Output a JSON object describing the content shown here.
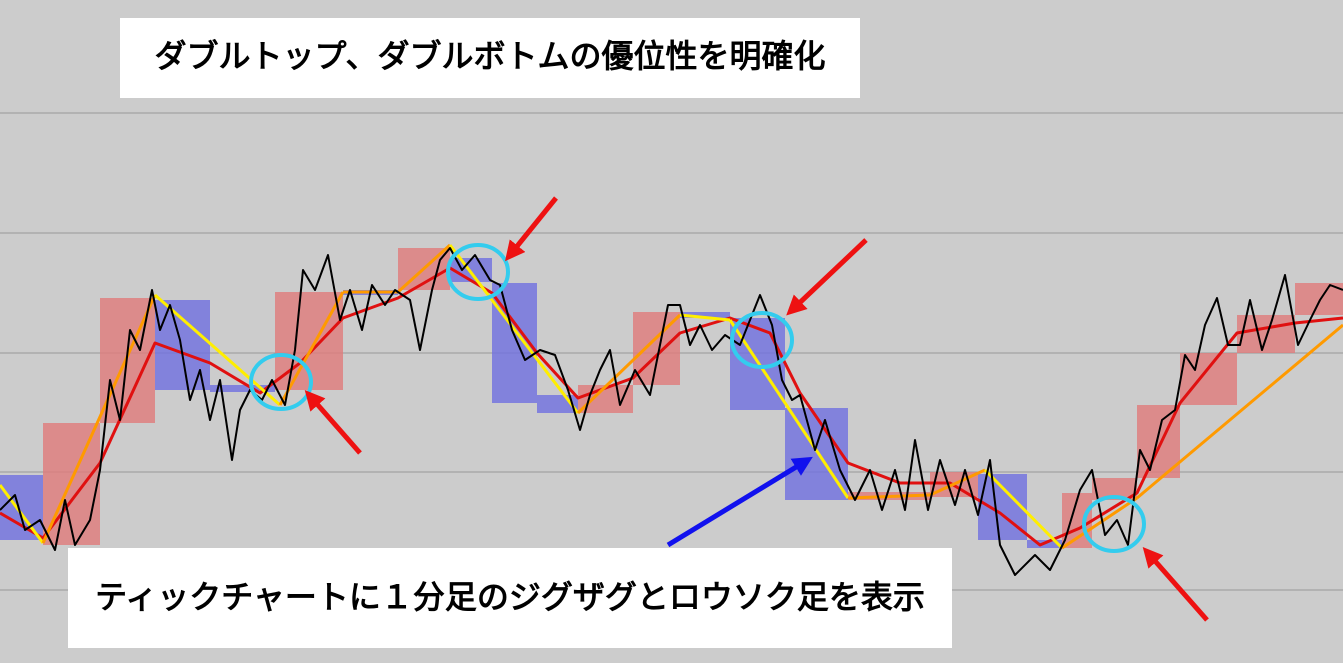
{
  "title": "ダブルトップ、ダブルボトムの優位性を明確化",
  "caption": "ティックチャートに１分足のジグザグとロウソク足を表示",
  "chart_data": {
    "type": "candlestick",
    "xlim": [
      0,
      1343
    ],
    "ylim": [
      0,
      663
    ],
    "candles": {
      "up_color": "#e07a7a",
      "down_color": "#6f6fe0",
      "x": [
        0,
        43,
        100,
        155,
        210,
        275,
        343,
        398,
        450,
        492,
        537,
        578,
        633,
        680,
        730,
        785,
        848,
        930,
        978,
        1027,
        1062,
        1092,
        1137,
        1180,
        1237,
        1295
      ],
      "open": [
        188,
        118,
        240,
        363,
        278,
        273,
        373,
        373,
        405,
        380,
        268,
        250,
        278,
        351,
        345,
        255,
        163,
        166,
        189,
        123,
        115,
        163,
        185,
        258,
        310,
        348
      ],
      "close": [
        123,
        240,
        365,
        273,
        271,
        371,
        368,
        415,
        381,
        260,
        250,
        278,
        351,
        345,
        253,
        163,
        171,
        191,
        123,
        115,
        170,
        185,
        258,
        310,
        348,
        380
      ]
    },
    "ma": {
      "color": "#e01010",
      "x": [
        0,
        43,
        100,
        155,
        210,
        260,
        300,
        343,
        398,
        450,
        492,
        537,
        578,
        633,
        680,
        730,
        770,
        800,
        848,
        900,
        950,
        1000,
        1040,
        1080,
        1137,
        1180,
        1237,
        1295,
        1343
      ],
      "values": [
        150,
        125,
        200,
        320,
        300,
        270,
        300,
        345,
        365,
        395,
        370,
        310,
        265,
        285,
        330,
        345,
        330,
        270,
        200,
        180,
        180,
        150,
        118,
        135,
        170,
        260,
        330,
        340,
        345
      ]
    },
    "zigzag": {
      "up_color": "#ff9a00",
      "down_color": "#ffee00",
      "x": [
        0,
        43,
        155,
        280,
        343,
        398,
        450,
        492,
        578,
        680,
        730,
        848,
        930,
        985,
        1062,
        1137,
        1343
      ],
      "values": [
        178,
        120,
        368,
        258,
        371,
        371,
        418,
        363,
        250,
        348,
        343,
        165,
        168,
        193,
        115,
        165,
        338
      ]
    },
    "tick": {
      "color": "#000000",
      "x": [
        0,
        15,
        25,
        40,
        55,
        65,
        75,
        90,
        100,
        110,
        120,
        130,
        140,
        152,
        160,
        170,
        180,
        190,
        200,
        210,
        220,
        232,
        240,
        250,
        262,
        272,
        285,
        295,
        303,
        315,
        328,
        340,
        350,
        362,
        372,
        385,
        395,
        410,
        420,
        432,
        440,
        450,
        462,
        475,
        490,
        500,
        512,
        525,
        540,
        555,
        568,
        580,
        590,
        600,
        610,
        620,
        635,
        650,
        668,
        680,
        690,
        700,
        712,
        725,
        740,
        760,
        772,
        782,
        792,
        800,
        815,
        825,
        840,
        855,
        870,
        882,
        895,
        905,
        915,
        928,
        940,
        955,
        965,
        978,
        990,
        1000,
        1015,
        1035,
        1050,
        1065,
        1080,
        1092,
        1105,
        1117,
        1128,
        1140,
        1150,
        1162,
        1175,
        1185,
        1195,
        1205,
        1217,
        1228,
        1240,
        1250,
        1262,
        1272,
        1285,
        1298,
        1310,
        1320,
        1330,
        1343
      ],
      "values": [
        153,
        168,
        133,
        143,
        113,
        163,
        118,
        143,
        193,
        283,
        243,
        333,
        313,
        373,
        333,
        358,
        323,
        263,
        293,
        243,
        283,
        203,
        253,
        273,
        263,
        283,
        258,
        313,
        393,
        373,
        408,
        343,
        373,
        333,
        378,
        358,
        373,
        363,
        313,
        373,
        403,
        415,
        393,
        408,
        383,
        378,
        333,
        303,
        313,
        308,
        273,
        233,
        268,
        293,
        313,
        258,
        293,
        268,
        358,
        358,
        318,
        338,
        313,
        328,
        318,
        368,
        338,
        283,
        263,
        268,
        213,
        243,
        193,
        163,
        193,
        153,
        193,
        153,
        223,
        153,
        203,
        158,
        193,
        148,
        203,
        118,
        88,
        108,
        93,
        123,
        173,
        193,
        128,
        143,
        118,
        213,
        193,
        243,
        253,
        308,
        293,
        338,
        365,
        318,
        318,
        363,
        313,
        343,
        388,
        318,
        343,
        363,
        378,
        373
      ]
    }
  }
}
